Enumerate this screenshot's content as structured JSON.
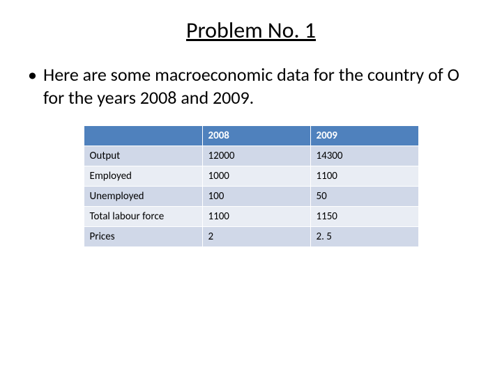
{
  "title": "Problem No. 1",
  "bullet": "Here are some macroeconomic data for the country of O for the years 2008 and 2009.",
  "table": {
    "header_bg": "#4f81bd",
    "header_fg": "#ffffff",
    "row_bg_alt0": "#d0d8e8",
    "row_bg_alt1": "#e9edf4",
    "border_color": "#ffffff",
    "columns": [
      "",
      "2008",
      "2009"
    ],
    "rows": [
      [
        "Output",
        "12000",
        "14300"
      ],
      [
        "Employed",
        "1000",
        "1100"
      ],
      [
        "Unemployed",
        "100",
        "50"
      ],
      [
        "Total labour force",
        "1100",
        "1150"
      ],
      [
        "Prices",
        "2",
        "2. 5"
      ]
    ]
  }
}
